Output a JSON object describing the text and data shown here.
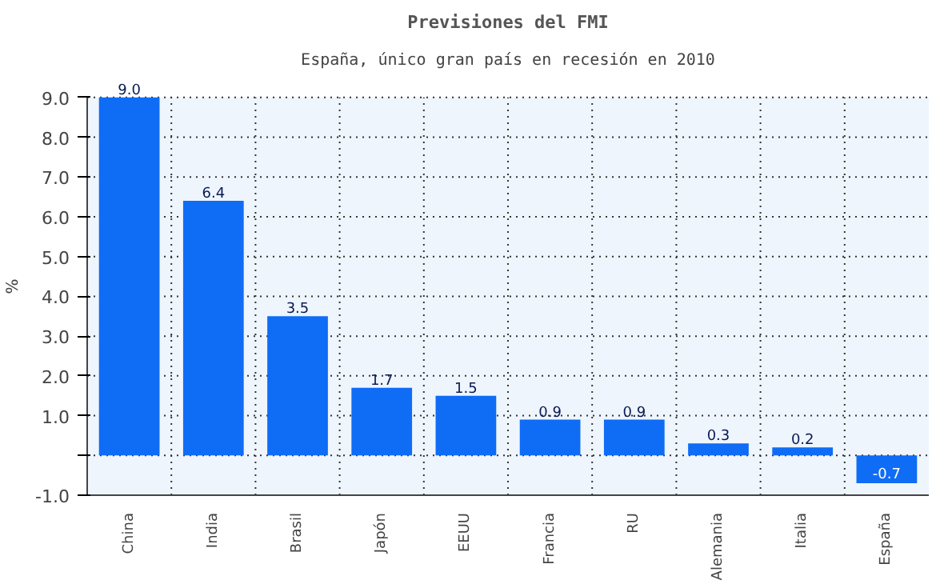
{
  "chart_data": {
    "type": "bar",
    "title": "Previsiones del FMI",
    "subtitle": "España, único gran país en recesión en 2010",
    "ylabel": "%",
    "categories": [
      "China",
      "India",
      "Brasil",
      "Japón",
      "EEUU",
      "Francia",
      "RU",
      "Alemania",
      "Italia",
      "España"
    ],
    "values": [
      9.0,
      6.4,
      3.5,
      1.7,
      1.5,
      0.9,
      0.9,
      0.3,
      0.2,
      -0.7
    ],
    "color": "#0f6cf5",
    "ylim": [
      -1,
      9
    ],
    "yticks": [
      {
        "value": -1,
        "label": "-1.0"
      },
      {
        "value": 0,
        "label": null
      },
      {
        "value": 1,
        "label": "1.0"
      },
      {
        "value": 2,
        "label": "2.0"
      },
      {
        "value": 3,
        "label": "3.0"
      },
      {
        "value": 4,
        "label": "4.0"
      },
      {
        "value": 5,
        "label": "5.0"
      },
      {
        "value": 6,
        "label": "6.0"
      },
      {
        "value": 7,
        "label": "7.0"
      },
      {
        "value": 8,
        "label": "8.0"
      },
      {
        "value": 9,
        "label": "9.0"
      }
    ],
    "value_labels": [
      "9.0",
      "6.4",
      "3.5",
      "1.7",
      "1.5",
      "0.9",
      "0.9",
      "0.3",
      "0.2",
      "-0.7"
    ],
    "grid": true
  }
}
